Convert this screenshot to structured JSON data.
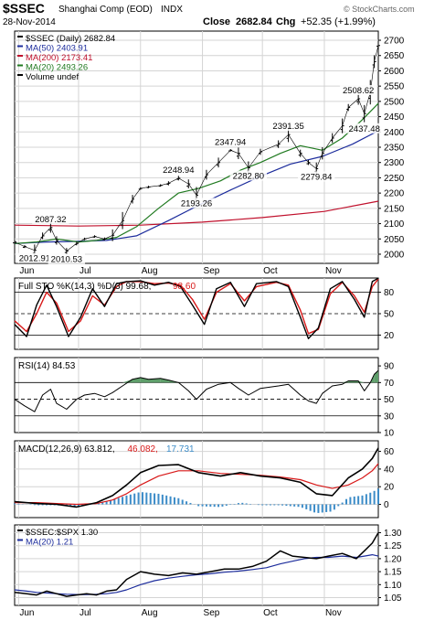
{
  "header": {
    "ticker": "$SSEC",
    "name": "Shanghai Comp (EOD)",
    "exchange": "INDX",
    "date": "28-Nov-2014",
    "close_label": "Close",
    "close_value": "2682.84",
    "chg_label": "Chg",
    "chg_value": "+52.35 (+1.99%)",
    "brand": "© StockCharts.com"
  },
  "colors": {
    "price": "#000000",
    "ma50": "#1c2c9c",
    "ma200": "#c0102c",
    "ma20": "#207a20",
    "signal": "#d81818",
    "histogram": "#3c8cc8",
    "rsi_fill": "#5e9e6a",
    "ratio_ma": "#1c2c9c"
  },
  "x_axis": {
    "months": [
      "Jun",
      "Jul",
      "Aug",
      "Sep",
      "Oct",
      "Nov"
    ]
  },
  "chart_data": [
    {
      "type": "line",
      "panel": "price",
      "legend": [
        {
          "text": "$SSEC (Daily) 2682.84",
          "color": "#000000"
        },
        {
          "text": "MA(50) 2403.91",
          "color": "#1c2c9c"
        },
        {
          "text": "MA(200) 2173.41",
          "color": "#c0102c"
        },
        {
          "text": "MA(20) 2493.26",
          "color": "#207a20"
        },
        {
          "text": "Volume undef",
          "color": "#000000"
        }
      ],
      "ylim": [
        1970,
        2730
      ],
      "yticks": [
        "2700",
        "2650",
        "2600",
        "2550",
        "2500",
        "2450",
        "2400",
        "2350",
        "2300",
        "2250",
        "2200",
        "2150",
        "2100",
        "2050",
        "2000"
      ],
      "x_start": "2014-05-30",
      "x_end": "2014-11-28",
      "series": [
        {
          "key": "price",
          "x": [
            "2014-05-30",
            "2014-06-04",
            "2014-06-09",
            "2014-06-13",
            "2014-06-17",
            "2014-06-20",
            "2014-06-25",
            "2014-06-30",
            "2014-07-04",
            "2014-07-09",
            "2014-07-14",
            "2014-07-18",
            "2014-07-23",
            "2014-07-28",
            "2014-08-01",
            "2014-08-05",
            "2014-08-11",
            "2014-08-15",
            "2014-08-20",
            "2014-08-25",
            "2014-08-29",
            "2014-09-03",
            "2014-09-09",
            "2014-09-15",
            "2014-09-19",
            "2014-09-24",
            "2014-09-30",
            "2014-10-09",
            "2014-10-14",
            "2014-10-20",
            "2014-10-24",
            "2014-10-28",
            "2014-10-31",
            "2014-11-05",
            "2014-11-10",
            "2014-11-13",
            "2014-11-18",
            "2014-11-21",
            "2014-11-24",
            "2014-11-26",
            "2014-11-28"
          ],
          "values": [
            2040,
            2025,
            2012.91,
            2060,
            2087.32,
            2045,
            2010.53,
            2035,
            2050,
            2058,
            2050,
            2062,
            2110,
            2180,
            2215,
            2220,
            2225,
            2232,
            2248.94,
            2230,
            2193.26,
            2260,
            2300,
            2340,
            2330,
            2282.8,
            2335,
            2360,
            2391.35,
            2330,
            2300,
            2279.84,
            2330,
            2380,
            2420,
            2480,
            2508.62,
            2460,
            2530,
            2630,
            2682.84
          ]
        },
        {
          "key": "ma20",
          "x": [
            "2014-05-30",
            "2014-06-10",
            "2014-06-20",
            "2014-07-01",
            "2014-07-10",
            "2014-07-20",
            "2014-07-30",
            "2014-08-10",
            "2014-08-20",
            "2014-08-30",
            "2014-09-10",
            "2014-09-20",
            "2014-09-30",
            "2014-10-10",
            "2014-10-20",
            "2014-10-31",
            "2014-11-10",
            "2014-11-20",
            "2014-11-28"
          ],
          "values": [
            2035,
            2040,
            2050,
            2040,
            2045,
            2055,
            2090,
            2150,
            2200,
            2215,
            2240,
            2275,
            2300,
            2330,
            2355,
            2340,
            2380,
            2440,
            2493.26
          ]
        },
        {
          "key": "ma50",
          "x": [
            "2014-05-30",
            "2014-06-15",
            "2014-07-01",
            "2014-07-15",
            "2014-07-30",
            "2014-08-15",
            "2014-08-30",
            "2014-09-15",
            "2014-09-30",
            "2014-10-15",
            "2014-10-31",
            "2014-11-15",
            "2014-11-28"
          ],
          "values": [
            2035,
            2040,
            2042,
            2045,
            2060,
            2110,
            2160,
            2210,
            2255,
            2295,
            2320,
            2360,
            2403.91
          ]
        },
        {
          "key": "ma200",
          "x": [
            "2014-05-30",
            "2014-07-01",
            "2014-08-01",
            "2014-09-01",
            "2014-10-01",
            "2014-11-01",
            "2014-11-28"
          ],
          "values": [
            2095,
            2092,
            2095,
            2105,
            2120,
            2140,
            2173.41
          ]
        }
      ],
      "annotations": [
        {
          "text": "2012.91",
          "x": "2014-06-09",
          "y": 2012.91,
          "pos": "below"
        },
        {
          "text": "2087.32",
          "x": "2014-06-17",
          "y": 2087.32,
          "pos": "above"
        },
        {
          "text": "2010.53",
          "x": "2014-06-25",
          "y": 2010.53,
          "pos": "below"
        },
        {
          "text": "2248.94",
          "x": "2014-08-20",
          "y": 2248.94,
          "pos": "above"
        },
        {
          "text": "2193.26",
          "x": "2014-08-29",
          "y": 2193.26,
          "pos": "below"
        },
        {
          "text": "2347.94",
          "x": "2014-09-15",
          "y": 2340,
          "pos": "above"
        },
        {
          "text": "2282.80",
          "x": "2014-09-24",
          "y": 2282.8,
          "pos": "below"
        },
        {
          "text": "2391.35",
          "x": "2014-10-14",
          "y": 2391.35,
          "pos": "above"
        },
        {
          "text": "2279.84",
          "x": "2014-10-28",
          "y": 2279.84,
          "pos": "below"
        },
        {
          "text": "2508.62",
          "x": "2014-11-18",
          "y": 2508.62,
          "pos": "above"
        },
        {
          "text": "2437.48",
          "x": "2014-11-21",
          "y": 2437.48,
          "pos": "below"
        }
      ]
    },
    {
      "type": "line",
      "panel": "stochastic",
      "legend": [
        {
          "text": "Full STO %K(14,3) %D(3) 99.68,",
          "color": "#000000"
        },
        {
          "text": "98.60",
          "color": "#d81818"
        }
      ],
      "ylim": [
        0,
        100
      ],
      "yticks": [
        "80",
        "50",
        "20"
      ],
      "reference_lines": [
        80,
        50,
        20
      ],
      "x": [
        "2014-05-30",
        "2014-06-05",
        "2014-06-10",
        "2014-06-15",
        "2014-06-20",
        "2014-06-26",
        "2014-07-02",
        "2014-07-08",
        "2014-07-14",
        "2014-07-20",
        "2014-07-25",
        "2014-08-01",
        "2014-08-08",
        "2014-08-15",
        "2014-08-21",
        "2014-08-27",
        "2014-09-02",
        "2014-09-08",
        "2014-09-15",
        "2014-09-22",
        "2014-09-28",
        "2014-10-08",
        "2014-10-14",
        "2014-10-20",
        "2014-10-24",
        "2014-10-29",
        "2014-11-04",
        "2014-11-10",
        "2014-11-16",
        "2014-11-21",
        "2014-11-25",
        "2014-11-28"
      ],
      "series": [
        {
          "key": "k",
          "name": "%K",
          "values": [
            35,
            18,
            62,
            90,
            60,
            18,
            45,
            85,
            60,
            92,
            95,
            96,
            90,
            94,
            88,
            62,
            35,
            85,
            94,
            60,
            92,
            95,
            88,
            45,
            15,
            30,
            85,
            95,
            70,
            45,
            95,
            99.68
          ]
        },
        {
          "key": "d",
          "name": "%D",
          "values": [
            40,
            25,
            50,
            80,
            65,
            25,
            40,
            75,
            62,
            88,
            95,
            95,
            92,
            93,
            90,
            70,
            42,
            80,
            92,
            68,
            88,
            94,
            90,
            55,
            22,
            28,
            78,
            94,
            75,
            52,
            88,
            98.6
          ]
        }
      ]
    },
    {
      "type": "line",
      "panel": "rsi",
      "legend": [
        {
          "text": "RSI(14) 84.53",
          "color": "#000000"
        }
      ],
      "ylim": [
        10,
        100
      ],
      "yticks": [
        "90",
        "70",
        "50",
        "30",
        "10"
      ],
      "reference_lines": [
        70,
        50,
        30
      ],
      "x": [
        "2014-05-30",
        "2014-06-04",
        "2014-06-09",
        "2014-06-13",
        "2014-06-17",
        "2014-06-20",
        "2014-06-25",
        "2014-06-30",
        "2014-07-04",
        "2014-07-09",
        "2014-07-14",
        "2014-07-18",
        "2014-07-23",
        "2014-07-28",
        "2014-08-01",
        "2014-08-05",
        "2014-08-11",
        "2014-08-15",
        "2014-08-20",
        "2014-08-25",
        "2014-08-29",
        "2014-09-03",
        "2014-09-09",
        "2014-09-15",
        "2014-09-19",
        "2014-09-24",
        "2014-09-30",
        "2014-10-09",
        "2014-10-14",
        "2014-10-20",
        "2014-10-24",
        "2014-10-28",
        "2014-10-31",
        "2014-11-05",
        "2014-11-10",
        "2014-11-13",
        "2014-11-18",
        "2014-11-21",
        "2014-11-24",
        "2014-11-26",
        "2014-11-28"
      ],
      "series": [
        {
          "key": "rsi",
          "name": "RSI",
          "values": [
            50,
            42,
            35,
            55,
            62,
            45,
            38,
            50,
            55,
            57,
            53,
            58,
            66,
            74,
            76,
            74,
            75,
            73,
            70,
            60,
            50,
            62,
            68,
            70,
            63,
            55,
            63,
            66,
            68,
            55,
            48,
            45,
            57,
            66,
            68,
            72,
            72,
            60,
            70,
            80,
            84.53
          ]
        }
      ]
    },
    {
      "type": "line",
      "panel": "macd",
      "legend": [
        {
          "text": "MACD(12,26,9) 63.812,",
          "color": "#000000"
        },
        {
          "text": "46.082,",
          "color": "#d81818"
        },
        {
          "text": "17.731",
          "color": "#3c8cc8"
        }
      ],
      "ylim": [
        -15,
        72
      ],
      "yticks": [
        "60",
        "40",
        "20",
        "0"
      ],
      "x": [
        "2014-05-30",
        "2014-06-10",
        "2014-06-20",
        "2014-06-30",
        "2014-07-10",
        "2014-07-18",
        "2014-07-25",
        "2014-08-01",
        "2014-08-10",
        "2014-08-20",
        "2014-08-30",
        "2014-09-10",
        "2014-09-20",
        "2014-09-30",
        "2014-10-10",
        "2014-10-20",
        "2014-10-28",
        "2014-11-05",
        "2014-11-13",
        "2014-11-20",
        "2014-11-25",
        "2014-11-28"
      ],
      "series": [
        {
          "key": "macd",
          "name": "MACD",
          "values": [
            3,
            1,
            0,
            -3,
            2,
            10,
            22,
            36,
            44,
            45,
            36,
            32,
            36,
            32,
            30,
            25,
            12,
            10,
            30,
            40,
            52,
            63.812
          ]
        },
        {
          "key": "signal",
          "name": "Signal",
          "values": [
            2,
            2,
            1,
            0,
            1,
            5,
            12,
            22,
            32,
            38,
            38,
            35,
            34,
            33,
            31,
            28,
            22,
            18,
            22,
            30,
            38,
            46.082
          ]
        },
        {
          "key": "histogram",
          "name": "Histogram",
          "type": "bar",
          "values": [
            1,
            -1,
            -1,
            -3,
            1,
            5,
            10,
            14,
            12,
            7,
            -2,
            -3,
            2,
            -1,
            -1,
            -3,
            -10,
            -8,
            8,
            10,
            14,
            17.731
          ]
        }
      ]
    },
    {
      "type": "line",
      "panel": "ratio",
      "legend": [
        {
          "text": "$SSEC:$SPX 1.30",
          "color": "#000000"
        },
        {
          "text": "MA(20) 1.21",
          "color": "#1c2c9c"
        }
      ],
      "ylim": [
        1.02,
        1.33
      ],
      "yticks": [
        "1.30",
        "1.25",
        "1.20",
        "1.15",
        "1.10",
        "1.05"
      ],
      "x": [
        "2014-05-30",
        "2014-06-05",
        "2014-06-10",
        "2014-06-15",
        "2014-06-20",
        "2014-06-25",
        "2014-06-30",
        "2014-07-05",
        "2014-07-10",
        "2014-07-15",
        "2014-07-20",
        "2014-07-25",
        "2014-08-01",
        "2014-08-08",
        "2014-08-15",
        "2014-08-22",
        "2014-08-29",
        "2014-09-05",
        "2014-09-12",
        "2014-09-19",
        "2014-09-26",
        "2014-10-03",
        "2014-10-10",
        "2014-10-16",
        "2014-10-22",
        "2014-10-28",
        "2014-11-03",
        "2014-11-10",
        "2014-11-17",
        "2014-11-21",
        "2014-11-25",
        "2014-11-28"
      ],
      "series": [
        {
          "key": "ratio",
          "name": "$SSEC:$SPX",
          "values": [
            1.07,
            1.065,
            1.06,
            1.075,
            1.065,
            1.055,
            1.06,
            1.065,
            1.06,
            1.075,
            1.08,
            1.12,
            1.15,
            1.14,
            1.135,
            1.145,
            1.14,
            1.15,
            1.16,
            1.16,
            1.17,
            1.19,
            1.23,
            1.21,
            1.205,
            1.2,
            1.21,
            1.22,
            1.2,
            1.23,
            1.26,
            1.3
          ]
        },
        {
          "key": "ma",
          "name": "MA(20)",
          "values": [
            1.08,
            1.075,
            1.07,
            1.068,
            1.065,
            1.063,
            1.062,
            1.062,
            1.063,
            1.065,
            1.07,
            1.08,
            1.1,
            1.115,
            1.125,
            1.132,
            1.138,
            1.142,
            1.148,
            1.152,
            1.158,
            1.165,
            1.18,
            1.19,
            1.2,
            1.205,
            1.205,
            1.21,
            1.205,
            1.21,
            1.215,
            1.21
          ]
        }
      ]
    }
  ]
}
